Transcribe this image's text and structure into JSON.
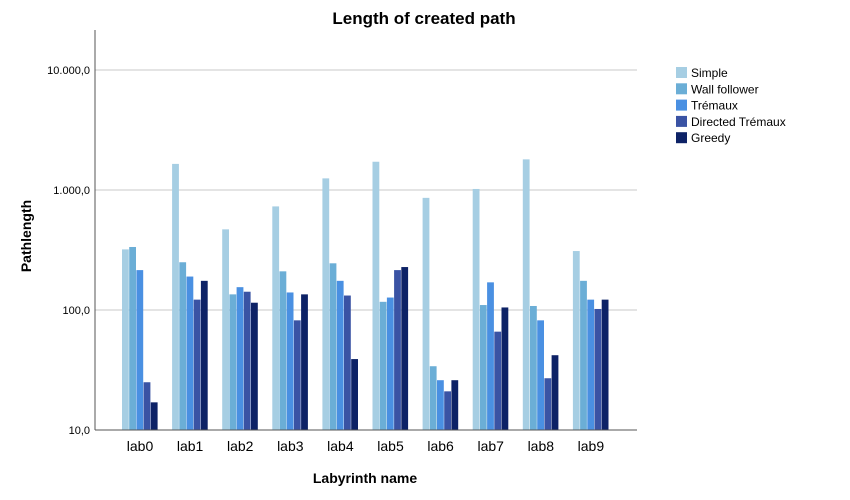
{
  "chart_data": {
    "type": "bar",
    "title": "Length of created path",
    "xlabel": "Labyrinth name",
    "ylabel": "Pathlength",
    "yscale": "log",
    "ylim": [
      10,
      20000
    ],
    "grid": true,
    "legend_position": "right",
    "y_ticks": [
      {
        "value": 10,
        "label": "10,0"
      },
      {
        "value": 100,
        "label": "100,0"
      },
      {
        "value": 1000,
        "label": "1.000,0"
      },
      {
        "value": 10000,
        "label": "10.000,0"
      }
    ],
    "categories": [
      "lab0",
      "lab1",
      "lab2",
      "lab3",
      "lab4",
      "lab5",
      "lab6",
      "lab7",
      "lab8",
      "lab9"
    ],
    "series": [
      {
        "name": "Simple",
        "color": "#a6cee3",
        "values": [
          320,
          1650,
          470,
          730,
          1250,
          1720,
          860,
          1020,
          1800,
          310
        ]
      },
      {
        "name": "Wall follower",
        "color": "#6baed6",
        "values": [
          335,
          250,
          135,
          210,
          245,
          117,
          34,
          110,
          108,
          175
        ]
      },
      {
        "name": "Trémaux",
        "color": "#4a90e2",
        "values": [
          215,
          190,
          155,
          140,
          175,
          127,
          26,
          170,
          82,
          122
        ]
      },
      {
        "name": "Directed Trémaux",
        "color": "#3a53a4",
        "values": [
          25,
          122,
          142,
          82,
          132,
          215,
          21,
          66,
          27,
          102
        ]
      },
      {
        "name": "Greedy",
        "color": "#0d2266",
        "values": [
          17,
          175,
          115,
          135,
          39,
          228,
          26,
          105,
          42,
          122
        ]
      }
    ]
  }
}
